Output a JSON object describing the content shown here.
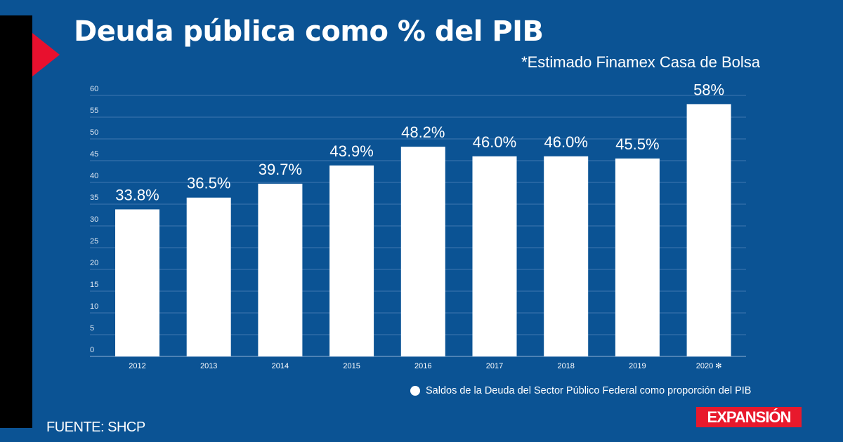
{
  "title": "Deuda pública como % del PIB",
  "subtitle": "*Estimado Finamex Casa de Bolsa",
  "source": "FUENTE: SHCP",
  "logo": "EXPANSIÓN",
  "colors": {
    "background": "#0b5394",
    "bar": "#ffffff",
    "accent": "#e8102e"
  },
  "chart_data": {
    "type": "bar",
    "title": "Deuda pública como % del PIB",
    "categories": [
      "2012",
      "2013",
      "2014",
      "2015",
      "2016",
      "2017",
      "2018",
      "2019",
      "2020 ✻"
    ],
    "values": [
      33.8,
      36.5,
      39.7,
      43.9,
      48.2,
      46.0,
      46.0,
      45.5,
      58
    ],
    "data_labels": [
      "33.8%",
      "36.5%",
      "39.7%",
      "43.9%",
      "48.2%",
      "46.0%",
      "46.0%",
      "45.5%",
      "58%"
    ],
    "yticks": [
      0,
      5,
      10,
      15,
      20,
      25,
      30,
      35,
      40,
      45,
      50,
      55,
      60
    ],
    "ylim": [
      0,
      60
    ],
    "grid": true,
    "legend": {
      "entries": [
        "Saldos de la Deuda del Sector Público Federal como proporción del PIB"
      ],
      "placement": "bottom-right"
    }
  }
}
